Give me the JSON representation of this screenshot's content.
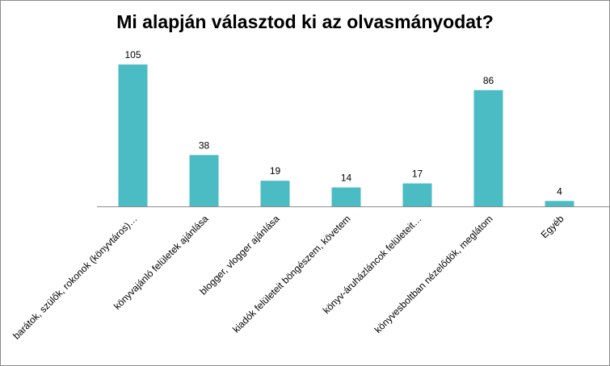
{
  "chart_data": {
    "type": "bar",
    "title": "Mi alapján választod ki az olvasmányodat?",
    "categories": [
      "barátok, szülők, rokonok (könyvtáros)…",
      "könyvajánló felületek ajánlása",
      "blogger, vlogger ajánlása",
      "kiadók felületeit böngészem, követem",
      "könyv-áruházláncok felületeit…",
      "könyvesboltban nézelődök, meglátom",
      "Egyéb"
    ],
    "values": [
      105,
      38,
      19,
      14,
      17,
      86,
      4
    ],
    "xlabel": "",
    "ylabel": "",
    "ylim": [
      0,
      110
    ],
    "grid": false,
    "legend": "none",
    "bar_color": "#4BBCC4",
    "axis_color": "#8c8c8c"
  }
}
